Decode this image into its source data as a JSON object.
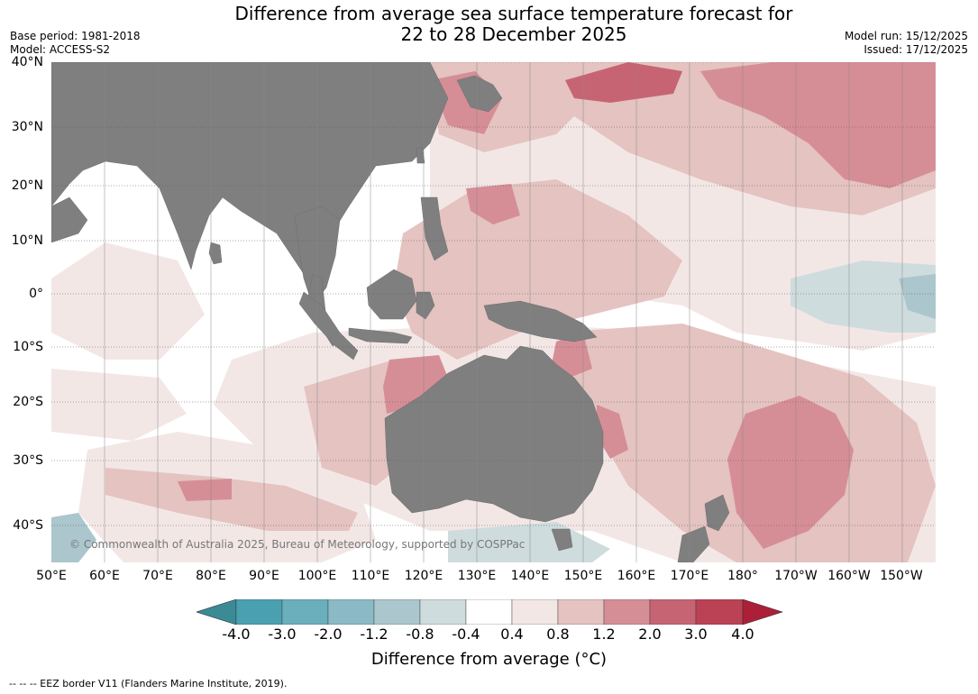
{
  "header": {
    "title_line1": "Difference from average sea surface temperature forecast for",
    "title_line2": "22 to 28 December 2025",
    "base_period": "Base period: 1981-2018",
    "model": "Model: ACCESS-S2",
    "model_run": "Model run: 15/12/2025",
    "issued": "Issued: 17/12/2025"
  },
  "map": {
    "lat_labels": [
      "40°N",
      "30°N",
      "20°N",
      "10°N",
      "0°",
      "10°S",
      "20°S",
      "30°S",
      "40°S"
    ],
    "lon_labels": [
      "50°E",
      "60°E",
      "70°E",
      "80°E",
      "90°E",
      "100°E",
      "110°E",
      "120°E",
      "130°E",
      "140°E",
      "150°E",
      "160°E",
      "170°E",
      "180°",
      "170°W",
      "160°W",
      "150°W"
    ],
    "copyright": "© Commonwealth of Australia 2025, Bureau of Meteorology, supported by COSPPac",
    "colors": {
      "land": "#7f7f7f",
      "anomaly_lt_-4": "#3a8b96",
      "anomaly_-4_-3": "#4aa0b0",
      "anomaly_-3_-2": "#6aafbb",
      "anomaly_-2_-1.2": "#8bbac6",
      "anomaly_-1.2_-0.8": "#abc6cc",
      "anomaly_-0.8_-0.4": "#cfdcdd",
      "anomaly_-0.4_0.4": "#ffffff",
      "anomaly_0.4_0.8": "#f3e7e6",
      "anomaly_0.8_1.2": "#e4c3c1",
      "anomaly_1.2_2.0": "#d68e96",
      "anomaly_2.0_3.0": "#c76473",
      "anomaly_3.0_4.0": "#bb4255",
      "anomaly_gt_4": "#ad1f38"
    }
  },
  "colorbar": {
    "ticks": [
      "-4.0",
      "-3.0",
      "-2.0",
      "-1.2",
      "-0.8",
      "-0.4",
      "0.4",
      "0.8",
      "1.2",
      "2.0",
      "3.0",
      "4.0"
    ],
    "label": "Difference from average (°C)"
  },
  "footer": {
    "eez_note": "--  --  -- EEZ border V11 (Flanders Marine Institute, 2019)."
  }
}
